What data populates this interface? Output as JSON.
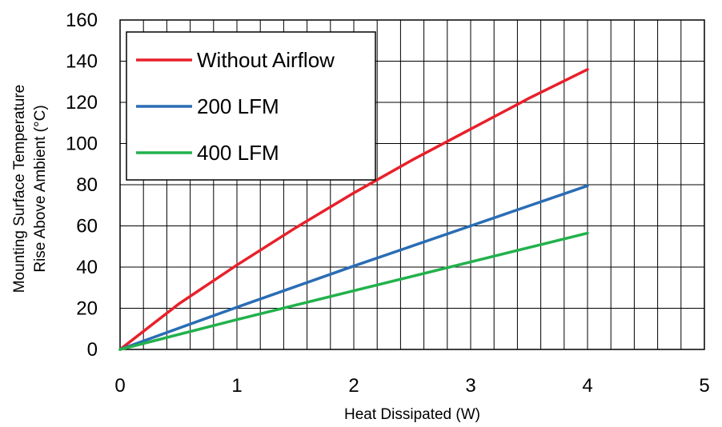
{
  "chart_data": {
    "type": "line",
    "title": "",
    "xlabel": "Heat Dissipated (W)",
    "ylabel_line1": "Mounting Surface Temperature",
    "ylabel_line2": "Rise Above  Ambient  (°C)",
    "xlim": [
      0,
      5
    ],
    "ylim": [
      0,
      160
    ],
    "x_major_ticks": [
      0,
      1,
      2,
      3,
      4,
      5
    ],
    "x_tick_labels": [
      "0",
      "1",
      "2",
      "3",
      "4",
      "5"
    ],
    "x_minor_step": 0.2,
    "y_ticks": [
      0,
      20,
      40,
      60,
      80,
      100,
      120,
      140,
      160
    ],
    "y_tick_labels": [
      "0",
      "20",
      "40",
      "60",
      "80",
      "100",
      "120",
      "140",
      "160"
    ],
    "grid": true,
    "legend_position": "top-left",
    "series": [
      {
        "name": "Without Airflow",
        "color": "#e8202a",
        "x": [
          0,
          0.5,
          1,
          1.5,
          2,
          2.5,
          3,
          3.5,
          4
        ],
        "y": [
          0,
          22,
          41,
          59,
          76,
          92,
          107,
          122,
          136
        ]
      },
      {
        "name": "200 LFM",
        "color": "#2a6db5",
        "x": [
          0,
          1,
          2,
          3,
          4
        ],
        "y": [
          0,
          20.5,
          40.5,
          60,
          79.5
        ]
      },
      {
        "name": "400 LFM",
        "color": "#22b14c",
        "x": [
          0,
          1,
          2,
          3,
          4
        ],
        "y": [
          0,
          14.5,
          28.5,
          42.5,
          56.5
        ]
      }
    ]
  }
}
